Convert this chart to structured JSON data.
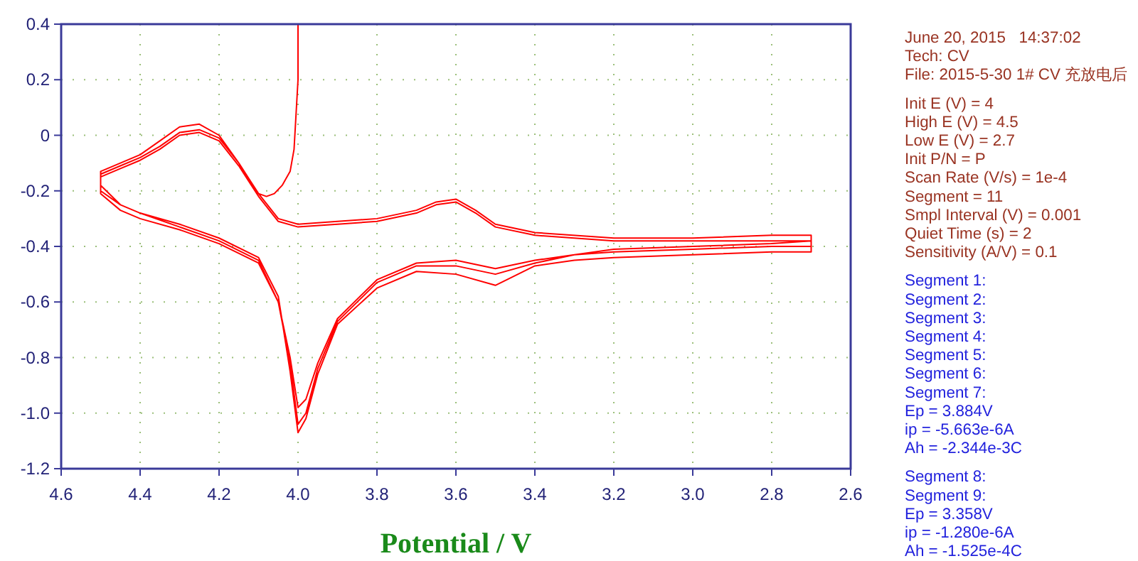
{
  "chart_data": {
    "type": "line",
    "xlabel": "Potential / V",
    "xlim": [
      4.6,
      2.6
    ],
    "xticks": [
      4.6,
      4.4,
      4.2,
      {
        "value": 4,
        "label": "4.0"
      },
      3.8,
      3.6,
      3.4,
      3.2,
      {
        "value": 3,
        "label": "3.0"
      },
      2.8,
      2.6
    ],
    "ylim": [
      -1.2,
      0.4
    ],
    "yticks": [
      0.4,
      0.2,
      0,
      -0.2,
      -0.4,
      -0.6,
      -0.8,
      {
        "value": -1,
        "label": "-1.0"
      },
      -1.2
    ],
    "grid": true,
    "line_style": "solid",
    "series": [
      {
        "color": "#ff0000",
        "x": [
          4.0,
          4.0,
          4.01,
          4.02,
          4.04,
          4.06,
          4.08,
          4.1,
          4.12,
          4.15,
          4.2,
          4.25,
          4.3,
          4.35,
          4.4,
          4.45,
          4.5,
          4.5,
          4.45,
          4.4,
          4.3,
          4.2,
          4.1,
          4.05,
          4.02,
          4.0,
          3.98,
          3.95,
          3.9,
          3.8,
          3.7,
          3.6,
          3.5,
          3.4,
          3.3,
          3.2,
          3.0,
          2.8,
          2.7,
          2.7,
          2.8,
          3.0,
          3.2,
          3.4,
          3.5,
          3.55,
          3.6,
          3.65,
          3.7,
          3.8,
          3.9,
          4.0,
          4.05,
          4.1,
          4.15,
          4.2,
          4.25,
          4.3,
          4.35,
          4.4,
          4.45,
          4.5,
          4.5,
          4.45,
          4.4,
          4.3,
          4.2,
          4.1,
          4.05,
          4.02,
          4.0,
          3.98,
          3.95,
          3.9,
          3.8,
          3.7,
          3.6,
          3.5,
          3.4,
          3.3,
          3.2,
          3.0,
          2.8,
          2.7,
          2.7,
          2.8,
          3.0,
          3.2,
          3.4,
          3.5,
          3.55,
          3.6,
          3.65,
          3.7,
          3.8,
          3.9,
          4.0,
          4.05,
          4.1,
          4.15,
          4.2,
          4.25,
          4.3,
          4.35,
          4.4,
          4.45,
          4.5,
          4.5,
          4.45,
          4.4,
          4.3,
          4.2,
          4.1,
          4.05,
          4.02,
          4.0,
          3.98,
          3.95,
          3.9,
          3.8,
          3.7,
          3.6,
          3.5,
          3.4,
          3.3,
          3.2,
          3.0,
          2.8,
          2.7
        ],
        "values": [
          0.4,
          0.2,
          -0.05,
          -0.13,
          -0.18,
          -0.21,
          -0.22,
          -0.21,
          -0.17,
          -0.1,
          0.0,
          0.04,
          0.03,
          -0.02,
          -0.07,
          -0.1,
          -0.13,
          -0.2,
          -0.25,
          -0.28,
          -0.32,
          -0.37,
          -0.44,
          -0.58,
          -0.85,
          -1.07,
          -1.02,
          -0.86,
          -0.68,
          -0.55,
          -0.49,
          -0.5,
          -0.54,
          -0.47,
          -0.45,
          -0.44,
          -0.43,
          -0.42,
          -0.42,
          -0.36,
          -0.36,
          -0.37,
          -0.37,
          -0.35,
          -0.32,
          -0.27,
          -0.23,
          -0.24,
          -0.27,
          -0.3,
          -0.31,
          -0.32,
          -0.3,
          -0.21,
          -0.1,
          -0.01,
          0.02,
          0.01,
          -0.04,
          -0.08,
          -0.11,
          -0.14,
          -0.18,
          -0.25,
          -0.28,
          -0.33,
          -0.38,
          -0.45,
          -0.6,
          -0.82,
          -1.04,
          -1.0,
          -0.84,
          -0.67,
          -0.53,
          -0.47,
          -0.47,
          -0.5,
          -0.46,
          -0.43,
          -0.42,
          -0.41,
          -0.4,
          -0.4,
          -0.38,
          -0.38,
          -0.38,
          -0.38,
          -0.36,
          -0.33,
          -0.28,
          -0.24,
          -0.25,
          -0.28,
          -0.31,
          -0.32,
          -0.33,
          -0.31,
          -0.22,
          -0.11,
          -0.02,
          0.01,
          0.0,
          -0.05,
          -0.09,
          -0.12,
          -0.15,
          -0.21,
          -0.27,
          -0.3,
          -0.34,
          -0.39,
          -0.46,
          -0.6,
          -0.8,
          -0.98,
          -0.95,
          -0.82,
          -0.66,
          -0.52,
          -0.46,
          -0.45,
          -0.48,
          -0.45,
          -0.43,
          -0.41,
          -0.4,
          -0.39,
          -0.38
        ]
      }
    ],
    "annotations": [
      "June 20, 2015   14:37:02",
      "Tech: CV",
      "File: 2015-5-30 1# CV 充放电后",
      "Init E (V) = 4",
      "High E (V) = 4.5",
      "Low E (V) = 2.7",
      "Init P/N = P",
      "Scan Rate (V/s) = 1e-4",
      "Segment = 11",
      "Smpl Interval (V) = 0.001",
      "Quiet Time (s) = 2",
      "Sensitivity (A/V) = 0.1",
      "Segment 1:",
      "Segment 2:",
      "Segment 3:",
      "Segment 4:",
      "Segment 5:",
      "Segment 6:",
      "Segment 7:",
      "Ep = 3.884V",
      "ip = -5.663e-6A",
      "Ah = -2.344e-3C",
      "Segment 8:",
      "Segment 9:",
      "Ep = 3.358V",
      "ip = -1.280e-6A",
      "Ah = -1.525e-4C"
    ]
  }
}
